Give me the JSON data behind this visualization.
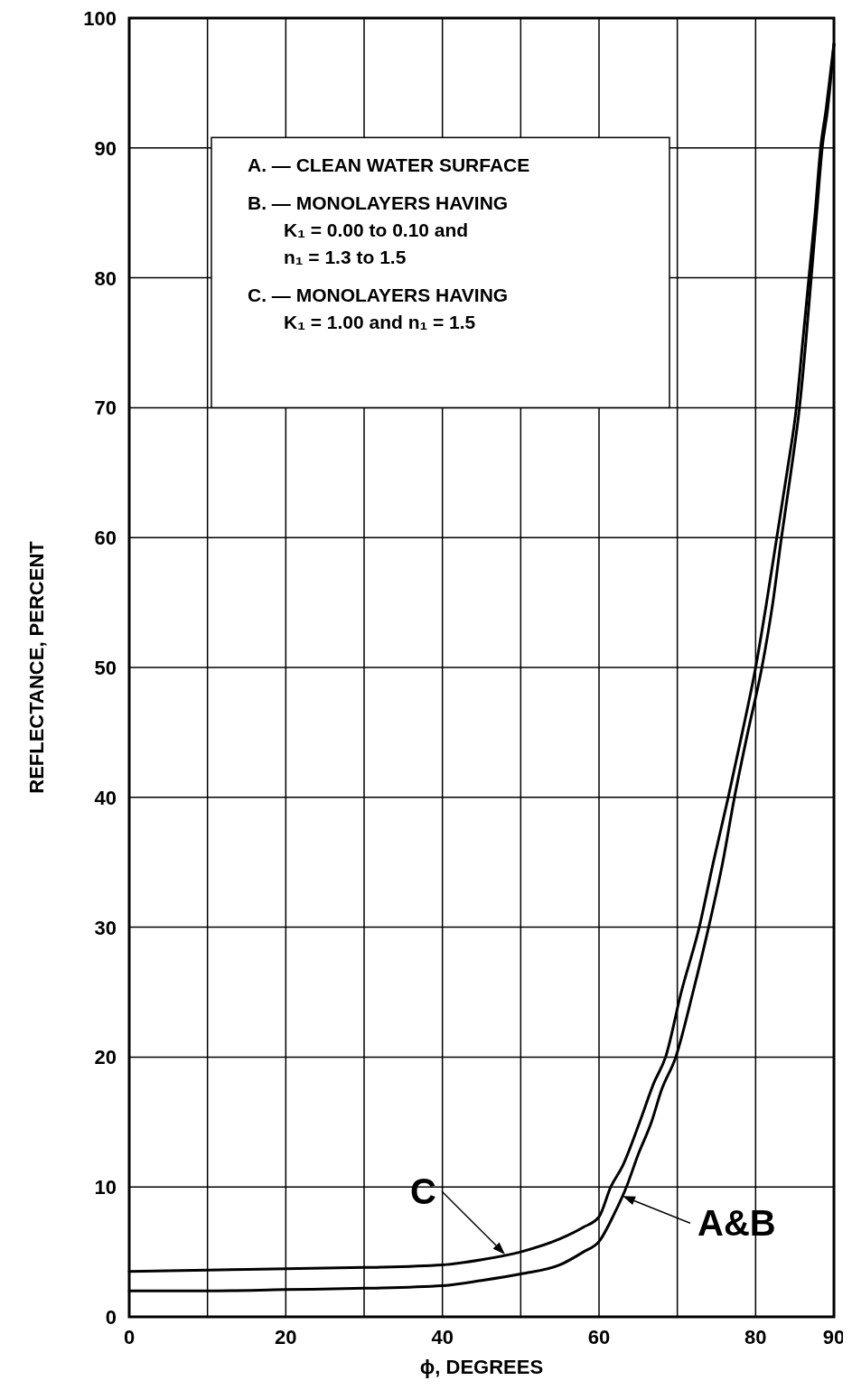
{
  "chart_data": {
    "type": "line",
    "xlabel": "ϕ, DEGREES",
    "ylabel": "REFLECTANCE, PERCENT",
    "xlim": [
      0,
      90
    ],
    "ylim": [
      0,
      100
    ],
    "xticks": [
      0,
      {
        "value": 10,
        "label": null
      },
      20,
      {
        "value": 30,
        "label": null
      },
      40,
      {
        "value": 50,
        "label": null
      },
      60,
      {
        "value": 70,
        "label": null
      },
      80,
      90
    ],
    "yticks": [
      0,
      10,
      20,
      30,
      40,
      50,
      60,
      70,
      80,
      90,
      100
    ],
    "grid": true,
    "line_style": "solid",
    "marker": "none",
    "series": [
      {
        "color": "#000000",
        "x": [
          0,
          10,
          20,
          30,
          40,
          45,
          50,
          55,
          58,
          60,
          61.5,
          63,
          65.2,
          67,
          68.5,
          70.5,
          72.8,
          74.6,
          76.5,
          78.3,
          80,
          81.4,
          82.7,
          84,
          85.2,
          86,
          86.8,
          87.6,
          88.3,
          89,
          89.6,
          90
        ],
        "values": [
          3.5,
          3.6,
          3.7,
          3.8,
          4.0,
          4.4,
          5.0,
          6.0,
          6.9,
          7.7,
          10,
          11.6,
          15,
          18,
          20,
          25,
          30,
          35,
          40,
          45,
          50,
          55,
          60,
          65,
          70,
          75,
          80,
          85,
          90,
          93,
          96,
          98
        ]
      },
      {
        "color": "#000000",
        "x": [
          0,
          10,
          20,
          30,
          40,
          45,
          50,
          55,
          58,
          60,
          62,
          63.5,
          65,
          66.7,
          68,
          69.8,
          72,
          74,
          75.8,
          77.3,
          79,
          80.8,
          82.2,
          83.3,
          84.5,
          85.6,
          86.4,
          87.1,
          87.8,
          88.5,
          89.2,
          89.7,
          90
        ],
        "values": [
          2.0,
          2.0,
          2.1,
          2.2,
          2.4,
          2.8,
          3.3,
          4.0,
          5.0,
          5.8,
          8.0,
          10,
          12.5,
          15,
          17.5,
          20,
          25,
          30,
          35,
          40,
          45,
          50,
          55,
          60,
          65,
          70,
          75,
          80,
          85,
          90,
          93,
          96,
          98
        ]
      }
    ],
    "annotations": [
      {
        "text": "C",
        "x": 48,
        "y": 4.8
      },
      {
        "text": "A&B",
        "x": 63,
        "y": 9.3
      },
      "A. — CLEAN WATER SURFACE",
      "B. — MONOLAYERS HAVING",
      "K₁ = 0.00 to 0.10 and",
      "n₁ = 1.3 to 1.5",
      "C. — MONOLAYERS HAVING",
      "K₁ = 1.00 and n₁ = 1.5"
    ]
  }
}
